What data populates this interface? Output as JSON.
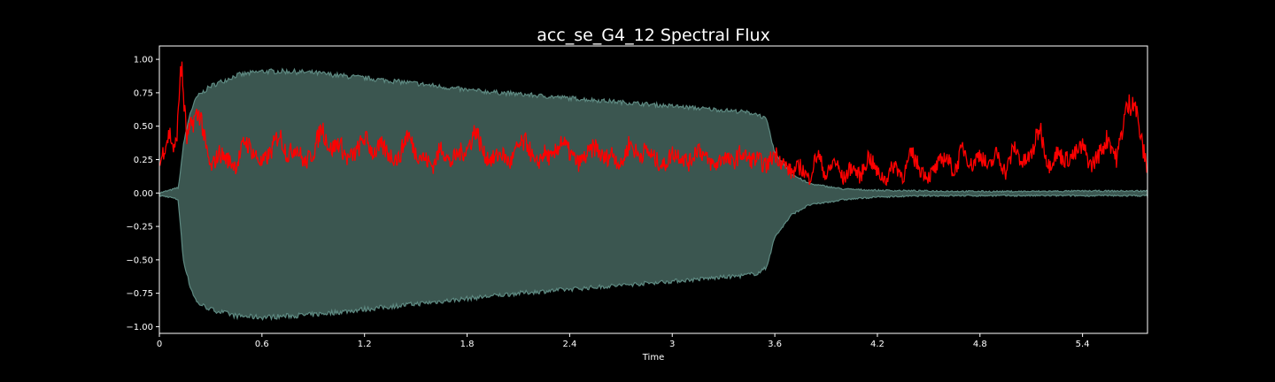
{
  "chart_data": {
    "type": "line",
    "title": "acc_se_G4_12 Spectral Flux",
    "xlabel": "Time",
    "ylabel": "",
    "xlim": [
      0,
      5.78
    ],
    "ylim": [
      -1.05,
      1.1
    ],
    "grid": false,
    "legend": "none",
    "x_ticks": [
      0,
      0.6,
      1.2,
      1.8,
      2.4,
      3.0,
      3.6,
      4.2,
      4.8,
      5.4
    ],
    "x_tick_labels": [
      "0",
      "0.6",
      "1.2",
      "1.8",
      "2.4",
      "3",
      "3.6",
      "4.2",
      "4.8",
      "5.4"
    ],
    "y_ticks": [
      1.0,
      0.75,
      0.5,
      0.25,
      0.0,
      -0.25,
      -0.5,
      -0.75,
      -1.0
    ],
    "y_tick_labels": [
      "1.00",
      "0.75",
      "0.50",
      "0.25",
      "0.00",
      "−0.25",
      "−0.50",
      "−0.75",
      "−1.00"
    ],
    "colors": {
      "background": "#000000",
      "waveform_fill": "#3b5650",
      "waveform_edge": "#5e8a82",
      "flux": "#ff0000",
      "axes": "#ffffff"
    },
    "series": [
      {
        "kind": "waveform-envelope",
        "x": [
          0,
          0.06,
          0.11,
          0.12,
          0.14,
          0.18,
          0.22,
          0.3,
          0.45,
          0.6,
          0.75,
          0.9,
          1.2,
          1.5,
          1.8,
          2.1,
          2.4,
          2.7,
          3.0,
          3.2,
          3.4,
          3.5,
          3.55,
          3.6,
          3.7,
          3.8,
          4.0,
          4.2,
          4.5,
          4.8,
          5.1,
          5.4,
          5.78
        ],
        "upper": [
          0.0,
          0.02,
          0.04,
          0.12,
          0.36,
          0.6,
          0.72,
          0.8,
          0.88,
          0.91,
          0.91,
          0.9,
          0.86,
          0.82,
          0.77,
          0.74,
          0.71,
          0.68,
          0.65,
          0.63,
          0.61,
          0.59,
          0.55,
          0.3,
          0.14,
          0.07,
          0.03,
          0.02,
          0.015,
          0.012,
          0.012,
          0.015,
          0.015
        ],
        "lower": [
          -0.02,
          -0.03,
          -0.05,
          -0.2,
          -0.5,
          -0.7,
          -0.82,
          -0.87,
          -0.92,
          -0.93,
          -0.92,
          -0.91,
          -0.87,
          -0.83,
          -0.79,
          -0.75,
          -0.72,
          -0.69,
          -0.66,
          -0.64,
          -0.62,
          -0.6,
          -0.56,
          -0.33,
          -0.16,
          -0.09,
          -0.05,
          -0.03,
          -0.02,
          -0.02,
          -0.02,
          -0.02,
          -0.02
        ]
      },
      {
        "kind": "spectral-flux",
        "x": [
          0,
          0.03,
          0.06,
          0.09,
          0.11,
          0.125,
          0.14,
          0.16,
          0.2,
          0.24,
          0.27,
          0.3,
          0.35,
          0.4,
          0.45,
          0.5,
          0.55,
          0.6,
          0.65,
          0.7,
          0.75,
          0.8,
          0.85,
          0.9,
          0.95,
          1.0,
          1.05,
          1.1,
          1.15,
          1.2,
          1.25,
          1.3,
          1.35,
          1.4,
          1.45,
          1.5,
          1.55,
          1.6,
          1.65,
          1.7,
          1.75,
          1.8,
          1.85,
          1.9,
          1.95,
          2.0,
          2.05,
          2.1,
          2.15,
          2.2,
          2.25,
          2.3,
          2.35,
          2.4,
          2.45,
          2.5,
          2.55,
          2.6,
          2.65,
          2.7,
          2.75,
          2.8,
          2.85,
          2.9,
          2.95,
          3.0,
          3.05,
          3.1,
          3.15,
          3.2,
          3.25,
          3.3,
          3.35,
          3.4,
          3.45,
          3.5,
          3.55,
          3.6,
          3.65,
          3.7,
          3.75,
          3.8,
          3.85,
          3.9,
          3.95,
          4.0,
          4.05,
          4.1,
          4.15,
          4.2,
          4.25,
          4.3,
          4.35,
          4.4,
          4.45,
          4.5,
          4.55,
          4.6,
          4.65,
          4.7,
          4.75,
          4.8,
          4.85,
          4.9,
          4.95,
          5.0,
          5.05,
          5.1,
          5.15,
          5.2,
          5.25,
          5.3,
          5.35,
          5.4,
          5.45,
          5.5,
          5.55,
          5.6,
          5.65,
          5.7,
          5.75,
          5.78
        ],
        "values": [
          0.2,
          0.35,
          0.45,
          0.3,
          0.55,
          1.0,
          0.75,
          0.4,
          0.55,
          0.6,
          0.35,
          0.18,
          0.3,
          0.25,
          0.2,
          0.4,
          0.3,
          0.22,
          0.3,
          0.45,
          0.28,
          0.35,
          0.22,
          0.3,
          0.5,
          0.32,
          0.38,
          0.25,
          0.3,
          0.42,
          0.3,
          0.35,
          0.28,
          0.25,
          0.45,
          0.3,
          0.26,
          0.2,
          0.35,
          0.22,
          0.3,
          0.32,
          0.48,
          0.28,
          0.25,
          0.3,
          0.22,
          0.35,
          0.38,
          0.2,
          0.3,
          0.25,
          0.4,
          0.3,
          0.22,
          0.28,
          0.35,
          0.25,
          0.3,
          0.2,
          0.38,
          0.28,
          0.32,
          0.25,
          0.2,
          0.3,
          0.28,
          0.22,
          0.35,
          0.25,
          0.2,
          0.28,
          0.22,
          0.3,
          0.25,
          0.25,
          0.2,
          0.3,
          0.22,
          0.15,
          0.2,
          0.1,
          0.3,
          0.12,
          0.25,
          0.1,
          0.2,
          0.12,
          0.28,
          0.15,
          0.1,
          0.22,
          0.12,
          0.3,
          0.18,
          0.12,
          0.2,
          0.28,
          0.15,
          0.35,
          0.2,
          0.3,
          0.18,
          0.3,
          0.15,
          0.35,
          0.22,
          0.28,
          0.5,
          0.2,
          0.3,
          0.25,
          0.28,
          0.35,
          0.2,
          0.3,
          0.42,
          0.25,
          0.6,
          0.72,
          0.35,
          0.18
        ]
      }
    ]
  }
}
